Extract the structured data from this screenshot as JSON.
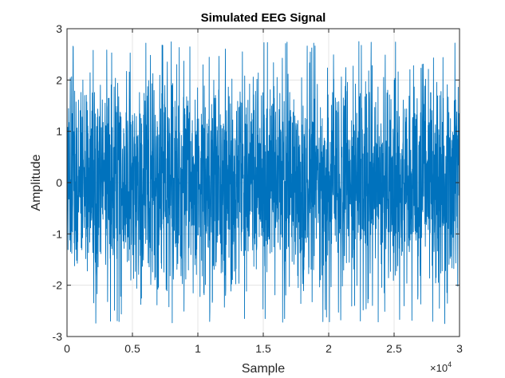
{
  "chart_data": {
    "type": "line",
    "title": "Simulated EEG Signal",
    "xlabel": "Sample",
    "ylabel": "Amplitude",
    "xlim": [
      0,
      30000
    ],
    "ylim": [
      -3,
      3
    ],
    "x_tick_labels": [
      "0",
      "0.5",
      "1",
      "1.5",
      "2",
      "2.5",
      "3"
    ],
    "x_tick_values": [
      0,
      5000,
      10000,
      15000,
      20000,
      25000,
      30000
    ],
    "x_exponent_label": "×10",
    "x_exponent_power": "4",
    "y_tick_labels": [
      "-3",
      "-2",
      "-1",
      "0",
      "1",
      "2",
      "3"
    ],
    "y_tick_values": [
      -3,
      -2,
      -1,
      0,
      1,
      2,
      3
    ],
    "grid": true,
    "box": true,
    "series": [
      {
        "color": "#0072BD",
        "sample_count": 30000,
        "typical_range": [
          -2.3,
          2.3
        ],
        "peak_max": 2.75,
        "peak_min": -2.75,
        "mean": 0
      }
    ]
  }
}
